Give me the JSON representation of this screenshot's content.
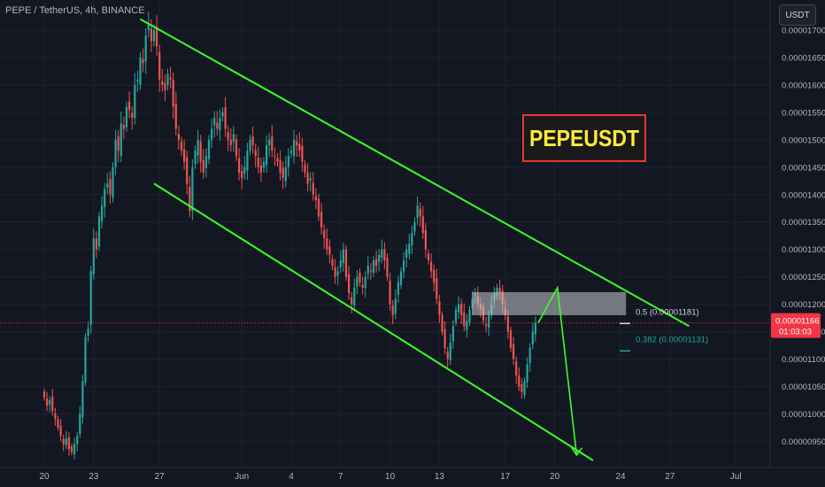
{
  "header": {
    "symbol_title": "PEPE / TetherUS, 4h, BINANCE",
    "currency_button": "USDT"
  },
  "watermark": {
    "text": "PEPEUSDT",
    "text_color": "#ffeb3b",
    "border_color": "#e53935"
  },
  "colors": {
    "up": "#26a69a",
    "down": "#ef5350",
    "channel": "#3bff2a",
    "fib_05": "#d1d4dc",
    "fib_0382": "#26a69a",
    "price_label_bg": "#f23645"
  },
  "chart_data": {
    "type": "candlestick",
    "timeframe": "4h",
    "y_axis": {
      "ylim": [
        9.15e-06,
        1.755e-05
      ],
      "ticks": [
        "0.00000950",
        "0.00001000",
        "0.00001050",
        "0.00001100",
        "0.00001150",
        "0.00001200",
        "0.00001250",
        "0.00001300",
        "0.00001350",
        "0.00001400",
        "0.00001450",
        "0.00001500",
        "0.00001550",
        "0.00001600",
        "0.00001650",
        "0.00001700"
      ]
    },
    "x_axis": {
      "ticks": [
        {
          "label": "20",
          "bar": 0
        },
        {
          "label": "23",
          "bar": 18
        },
        {
          "label": "27",
          "bar": 42
        },
        {
          "label": "Jun",
          "bar": 72
        },
        {
          "label": "4",
          "bar": 90
        },
        {
          "label": "7",
          "bar": 108
        },
        {
          "label": "10",
          "bar": 126
        },
        {
          "label": "13",
          "bar": 144
        },
        {
          "label": "17",
          "bar": 168
        },
        {
          "label": "20",
          "bar": 186
        },
        {
          "label": "24",
          "bar": 210
        },
        {
          "label": "27",
          "bar": 228
        },
        {
          "label": "Jul",
          "bar": 252
        }
      ]
    },
    "candles_close": [
      1.03e-05,
      1.015e-05,
      1.025e-05,
      1.005e-05,
      9.9e-06,
      9.75e-06,
      9.6e-06,
      9.45e-06,
      9.55e-06,
      9.35e-06,
      9.3e-06,
      9.45e-06,
      9.6e-06,
      1e-05,
      1.06e-05,
      1.14e-05,
      1.155e-05,
      1.26e-05,
      1.32e-05,
      1.3e-05,
      1.36e-05,
      1.38e-05,
      1.41e-05,
      1.42e-05,
      1.4e-05,
      1.45e-05,
      1.5e-05,
      1.48e-05,
      1.53e-05,
      1.52e-05,
      1.56e-05,
      1.555e-05,
      1.54e-05,
      1.6e-05,
      1.61e-05,
      1.65e-05,
      1.64e-05,
      1.69e-05,
      1.71e-05,
      1.68e-05,
      1.7e-05,
      1.67e-05,
      1.61e-05,
      1.6e-05,
      1.59e-05,
      1.62e-05,
      1.61e-05,
      1.56e-05,
      1.52e-05,
      1.5e-05,
      1.48e-05,
      1.46e-05,
      1.42e-05,
      1.37e-05,
      1.45e-05,
      1.48e-05,
      1.5e-05,
      1.46e-05,
      1.44e-05,
      1.47e-05,
      1.5e-05,
      1.52e-05,
      1.54e-05,
      1.52e-05,
      1.54e-05,
      1.55e-05,
      1.52e-05,
      1.5e-05,
      1.49e-05,
      1.51e-05,
      1.47e-05,
      1.44e-05,
      1.43e-05,
      1.45e-05,
      1.48e-05,
      1.5e-05,
      1.49e-05,
      1.47e-05,
      1.45e-05,
      1.44e-05,
      1.46e-05,
      1.49e-05,
      1.5e-05,
      1.48e-05,
      1.47e-05,
      1.46e-05,
      1.44e-05,
      1.43e-05,
      1.45e-05,
      1.47e-05,
      1.48e-05,
      1.5e-05,
      1.49e-05,
      1.48e-05,
      1.46e-05,
      1.44e-05,
      1.42e-05,
      1.43e-05,
      1.4e-05,
      1.39e-05,
      1.36e-05,
      1.34e-05,
      1.32e-05,
      1.3e-05,
      1.29e-05,
      1.27e-05,
      1.25e-05,
      1.26e-05,
      1.28e-05,
      1.3e-05,
      1.25e-05,
      1.22e-05,
      1.2e-05,
      1.23e-05,
      1.25e-05,
      1.24e-05,
      1.23e-05,
      1.25e-05,
      1.27e-05,
      1.26e-05,
      1.28e-05,
      1.27e-05,
      1.29e-05,
      1.3e-05,
      1.28e-05,
      1.25e-05,
      1.2e-05,
      1.18e-05,
      1.21e-05,
      1.24e-05,
      1.26e-05,
      1.28e-05,
      1.3e-05,
      1.31e-05,
      1.33e-05,
      1.35e-05,
      1.38e-05,
      1.36e-05,
      1.33e-05,
      1.3e-05,
      1.28e-05,
      1.26e-05,
      1.24e-05,
      1.21e-05,
      1.18e-05,
      1.15e-05,
      1.12e-05,
      1.1e-05,
      1.13e-05,
      1.16e-05,
      1.19e-05,
      1.2e-05,
      1.18e-05,
      1.16e-05,
      1.17e-05,
      1.19e-05,
      1.21e-05,
      1.22e-05,
      1.2e-05,
      1.19e-05,
      1.17e-05,
      1.16e-05,
      1.18e-05,
      1.2e-05,
      1.22e-05,
      1.23e-05,
      1.22e-05,
      1.2e-05,
      1.18e-05,
      1.15e-05,
      1.12e-05,
      1.1e-05,
      1.07e-05,
      1.05e-05,
      1.04e-05,
      1.06e-05,
      1.09e-05,
      1.12e-05,
      1.15e-05,
      1.166e-05
    ],
    "last_price": "0.00001166",
    "countdown": "01:03:03",
    "fib_levels": [
      {
        "label": "0.5 (0.00001181)",
        "value": 1.181e-05
      },
      {
        "label": "0.382 (0.00001131)",
        "value": 1.131e-05
      }
    ],
    "resistance_zone": [
      1.18e-05,
      1.222e-05
    ],
    "channel": {
      "upper": [
        {
          "bar": 35,
          "price": 1.72e-05
        },
        {
          "bar": 235,
          "price": 1.16e-05
        }
      ],
      "lower": [
        {
          "bar": 40,
          "price": 1.42e-05
        },
        {
          "bar": 200,
          "price": 9.15e-06
        }
      ]
    },
    "projection": [
      {
        "bar": 180,
        "price": 1.166e-05
      },
      {
        "bar": 187,
        "price": 1.23e-05
      },
      {
        "bar": 194,
        "price": 9.25e-06
      }
    ]
  }
}
